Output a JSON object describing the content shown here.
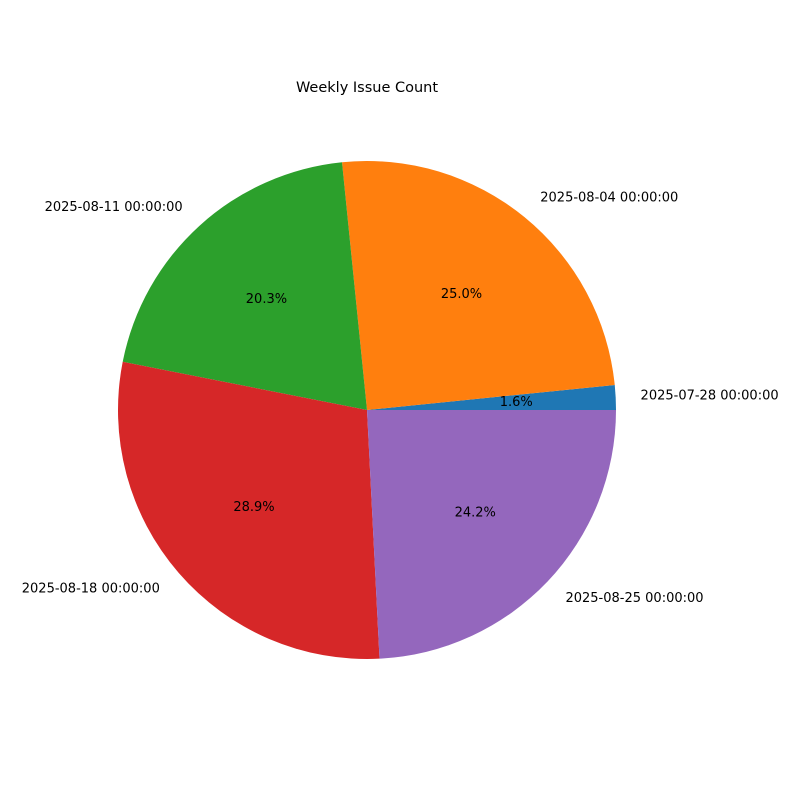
{
  "chart_data": {
    "type": "pie",
    "title": "Weekly Issue Count",
    "categories": [
      "2025-07-28 00:00:00",
      "2025-08-04 00:00:00",
      "2025-08-11 00:00:00",
      "2025-08-18 00:00:00",
      "2025-08-25 00:00:00"
    ],
    "values": [
      1.6,
      25.0,
      20.3,
      28.9,
      24.2
    ],
    "percent_labels": [
      "1.6%",
      "25.0%",
      "20.3%",
      "28.9%",
      "24.2%"
    ],
    "colors": [
      "#1f77b4",
      "#ff7f0e",
      "#2ca02c",
      "#d62728",
      "#9467bd"
    ],
    "start_angle_deg": 0,
    "direction": "counterclockwise"
  }
}
